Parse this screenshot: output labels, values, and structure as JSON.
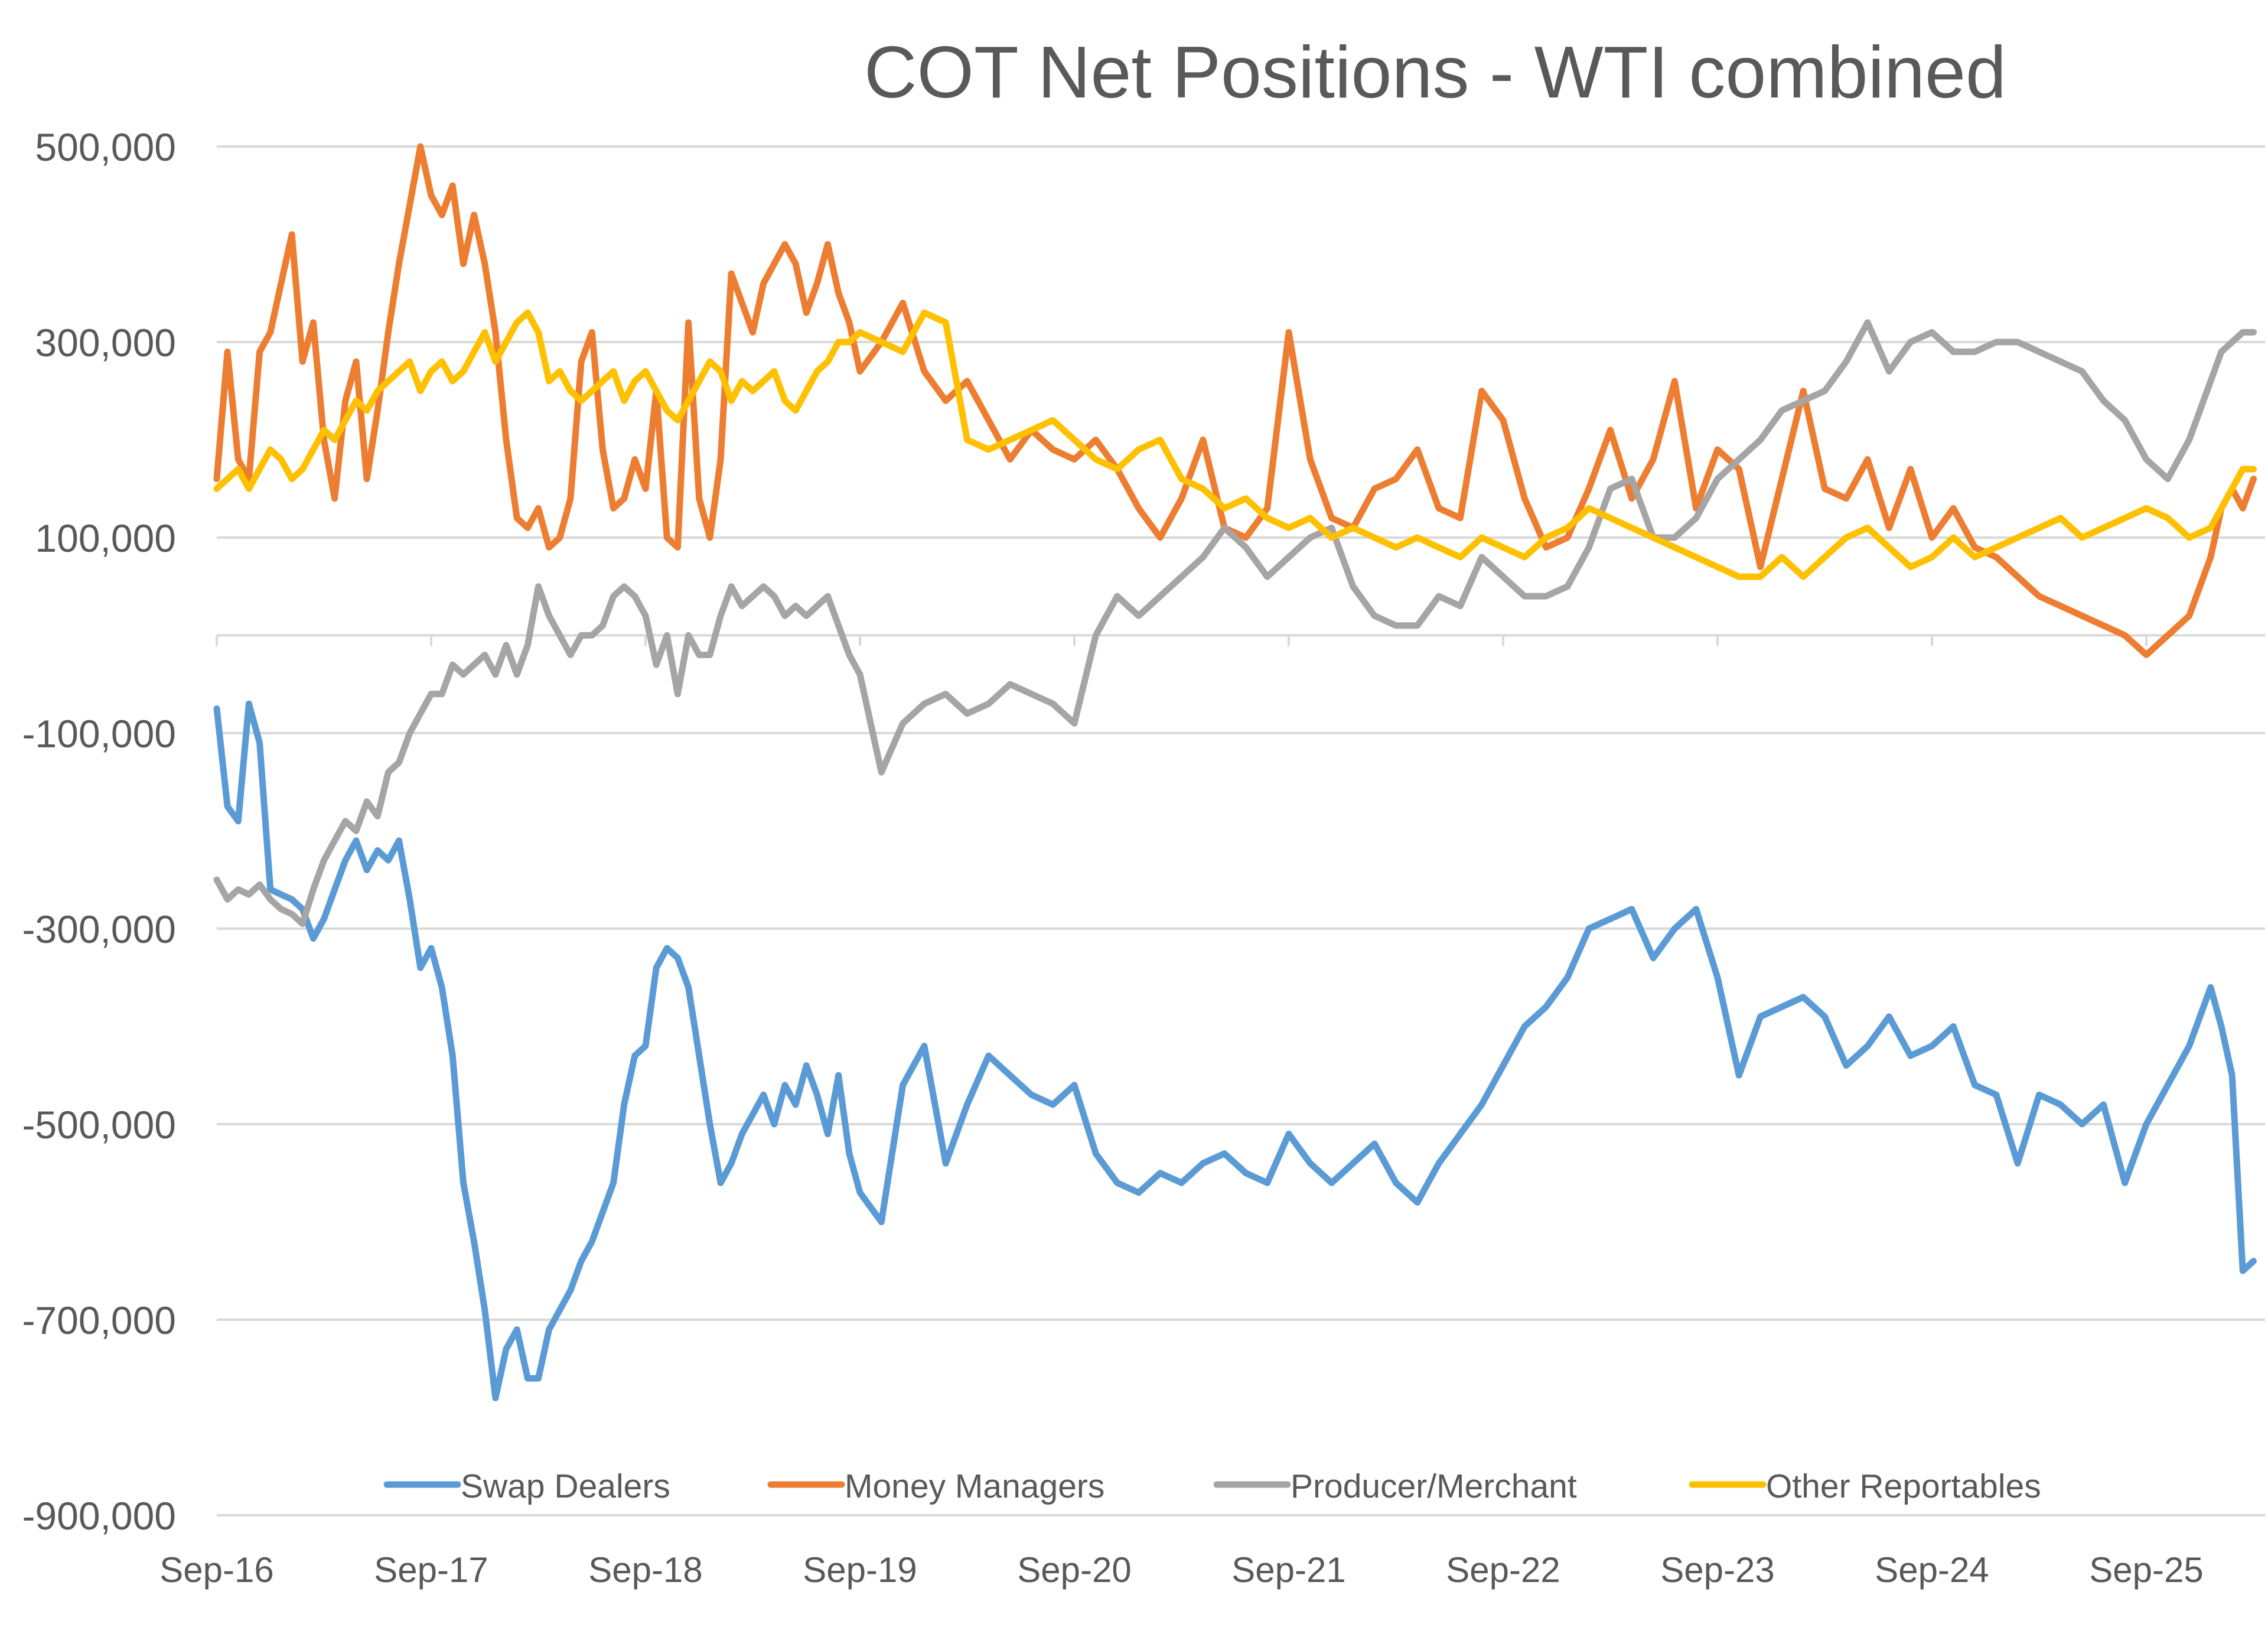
{
  "chart_data": {
    "type": "line",
    "title": "COT Net Positions - WTI combined",
    "xlabel": "",
    "ylabel": "",
    "ylim": [
      -900000,
      500000
    ],
    "yticks": [
      500000,
      300000,
      100000,
      -100000,
      -300000,
      -500000,
      -700000,
      -900000
    ],
    "ytick_labels": [
      "500,000",
      "300,000",
      "100,000",
      "-100,000",
      "-300,000",
      "-500,000",
      "-700,000",
      "-900,000"
    ],
    "xlim": [
      0,
      9.5
    ],
    "xticks": [
      0,
      1,
      2,
      3,
      4,
      5,
      6,
      7,
      8,
      9
    ],
    "xtick_labels": [
      "Sep-16",
      "Sep-17",
      "Sep-18",
      "Sep-19",
      "Sep-20",
      "Sep-21",
      "Sep-22",
      "Sep-23",
      "Sep-24",
      "Sep-25"
    ],
    "x_units": "years since Sep-16",
    "grid": true,
    "legend_position": "bottom",
    "series": [
      {
        "name": "Swap Dealers",
        "color": "#5B9BD5",
        "x": [
          0,
          0.05,
          0.1,
          0.15,
          0.2,
          0.25,
          0.3,
          0.35,
          0.4,
          0.45,
          0.5,
          0.55,
          0.6,
          0.65,
          0.7,
          0.75,
          0.8,
          0.85,
          0.9,
          0.95,
          1.0,
          1.05,
          1.1,
          1.15,
          1.2,
          1.25,
          1.3,
          1.35,
          1.4,
          1.45,
          1.5,
          1.55,
          1.6,
          1.65,
          1.7,
          1.75,
          1.8,
          1.85,
          1.9,
          1.95,
          2.0,
          2.05,
          2.1,
          2.15,
          2.2,
          2.25,
          2.3,
          2.35,
          2.4,
          2.45,
          2.5,
          2.55,
          2.6,
          2.65,
          2.7,
          2.75,
          2.8,
          2.85,
          2.9,
          2.95,
          3.0,
          3.1,
          3.2,
          3.3,
          3.4,
          3.5,
          3.6,
          3.7,
          3.8,
          3.9,
          4.0,
          4.1,
          4.2,
          4.3,
          4.4,
          4.5,
          4.6,
          4.7,
          4.8,
          4.9,
          5.0,
          5.1,
          5.2,
          5.3,
          5.4,
          5.5,
          5.6,
          5.7,
          5.8,
          5.9,
          6.0,
          6.1,
          6.2,
          6.3,
          6.4,
          6.5,
          6.6,
          6.7,
          6.8,
          6.9,
          7.0,
          7.1,
          7.2,
          7.3,
          7.4,
          7.5,
          7.6,
          7.7,
          7.8,
          7.9,
          8.0,
          8.1,
          8.2,
          8.3,
          8.4,
          8.5,
          8.6,
          8.7,
          8.8,
          8.9,
          9.0,
          9.1,
          9.2,
          9.3,
          9.35,
          9.4,
          9.45,
          9.5
        ],
        "values": [
          -75000,
          -175000,
          -190000,
          -70000,
          -110000,
          -260000,
          -265000,
          -270000,
          -280000,
          -310000,
          -290000,
          -260000,
          -230000,
          -210000,
          -240000,
          -220000,
          -230000,
          -210000,
          -270000,
          -340000,
          -320000,
          -360000,
          -430000,
          -560000,
          -620000,
          -690000,
          -780000,
          -730000,
          -710000,
          -760000,
          -760000,
          -710000,
          -690000,
          -670000,
          -640000,
          -620000,
          -590000,
          -560000,
          -480000,
          -430000,
          -420000,
          -340000,
          -320000,
          -330000,
          -360000,
          -430000,
          -500000,
          -560000,
          -540000,
          -510000,
          -490000,
          -470000,
          -500000,
          -460000,
          -480000,
          -440000,
          -470000,
          -510000,
          -450000,
          -530000,
          -570000,
          -600000,
          -460000,
          -420000,
          -540000,
          -480000,
          -430000,
          -450000,
          -470000,
          -480000,
          -460000,
          -530000,
          -560000,
          -570000,
          -550000,
          -560000,
          -540000,
          -530000,
          -550000,
          -560000,
          -510000,
          -540000,
          -560000,
          -540000,
          -520000,
          -560000,
          -580000,
          -540000,
          -510000,
          -480000,
          -440000,
          -400000,
          -380000,
          -350000,
          -300000,
          -290000,
          -280000,
          -330000,
          -300000,
          -280000,
          -350000,
          -450000,
          -390000,
          -380000,
          -370000,
          -390000,
          -440000,
          -420000,
          -390000,
          -430000,
          -420000,
          -400000,
          -460000,
          -470000,
          -540000,
          -470000,
          -480000,
          -500000,
          -480000,
          -560000,
          -500000,
          -460000,
          -420000,
          -360000,
          -400000,
          -450000,
          -650000,
          -640000
        ]
      },
      {
        "name": "Money Managers",
        "color": "#ED7D31",
        "x": [
          0,
          0.05,
          0.1,
          0.15,
          0.2,
          0.25,
          0.3,
          0.35,
          0.4,
          0.45,
          0.5,
          0.55,
          0.6,
          0.65,
          0.7,
          0.75,
          0.8,
          0.85,
          0.9,
          0.95,
          1.0,
          1.05,
          1.1,
          1.15,
          1.2,
          1.25,
          1.3,
          1.35,
          1.4,
          1.45,
          1.5,
          1.55,
          1.6,
          1.65,
          1.7,
          1.75,
          1.8,
          1.85,
          1.9,
          1.95,
          2.0,
          2.05,
          2.1,
          2.15,
          2.2,
          2.25,
          2.3,
          2.35,
          2.4,
          2.45,
          2.5,
          2.55,
          2.6,
          2.65,
          2.7,
          2.75,
          2.8,
          2.85,
          2.9,
          2.95,
          3.0,
          3.1,
          3.2,
          3.3,
          3.4,
          3.5,
          3.6,
          3.7,
          3.8,
          3.9,
          4.0,
          4.1,
          4.2,
          4.3,
          4.4,
          4.5,
          4.6,
          4.7,
          4.8,
          4.9,
          5.0,
          5.1,
          5.2,
          5.3,
          5.4,
          5.5,
          5.6,
          5.7,
          5.8,
          5.9,
          6.0,
          6.1,
          6.2,
          6.3,
          6.4,
          6.5,
          6.6,
          6.7,
          6.8,
          6.9,
          7.0,
          7.1,
          7.2,
          7.3,
          7.4,
          7.5,
          7.6,
          7.7,
          7.8,
          7.9,
          8.0,
          8.1,
          8.2,
          8.3,
          8.4,
          8.5,
          8.6,
          8.7,
          8.8,
          8.9,
          9.0,
          9.1,
          9.2,
          9.3,
          9.35,
          9.4,
          9.45,
          9.5
        ],
        "values": [
          160000,
          290000,
          180000,
          160000,
          290000,
          310000,
          360000,
          410000,
          280000,
          320000,
          200000,
          140000,
          240000,
          280000,
          160000,
          230000,
          310000,
          380000,
          440000,
          500000,
          450000,
          430000,
          460000,
          380000,
          430000,
          380000,
          310000,
          200000,
          120000,
          110000,
          130000,
          90000,
          100000,
          140000,
          280000,
          310000,
          190000,
          130000,
          140000,
          180000,
          150000,
          250000,
          100000,
          90000,
          320000,
          140000,
          100000,
          180000,
          370000,
          340000,
          310000,
          360000,
          380000,
          400000,
          380000,
          330000,
          360000,
          400000,
          350000,
          320000,
          270000,
          300000,
          340000,
          270000,
          240000,
          260000,
          220000,
          180000,
          210000,
          190000,
          180000,
          200000,
          170000,
          130000,
          100000,
          140000,
          200000,
          110000,
          100000,
          130000,
          310000,
          180000,
          120000,
          110000,
          150000,
          160000,
          190000,
          130000,
          120000,
          250000,
          220000,
          140000,
          90000,
          100000,
          150000,
          210000,
          140000,
          180000,
          260000,
          130000,
          190000,
          170000,
          70000,
          160000,
          250000,
          150000,
          140000,
          180000,
          110000,
          170000,
          100000,
          130000,
          90000,
          80000,
          60000,
          40000,
          30000,
          20000,
          10000,
          0,
          -20000,
          0,
          20000,
          80000,
          130000,
          150000,
          130000,
          160000
        ]
      },
      {
        "name": "Producer/Merchant",
        "color": "#A5A5A5",
        "x": [
          0,
          0.05,
          0.1,
          0.15,
          0.2,
          0.25,
          0.3,
          0.35,
          0.4,
          0.45,
          0.5,
          0.55,
          0.6,
          0.65,
          0.7,
          0.75,
          0.8,
          0.85,
          0.9,
          0.95,
          1.0,
          1.05,
          1.1,
          1.15,
          1.2,
          1.25,
          1.3,
          1.35,
          1.4,
          1.45,
          1.5,
          1.55,
          1.6,
          1.65,
          1.7,
          1.75,
          1.8,
          1.85,
          1.9,
          1.95,
          2.0,
          2.05,
          2.1,
          2.15,
          2.2,
          2.25,
          2.3,
          2.35,
          2.4,
          2.45,
          2.5,
          2.55,
          2.6,
          2.65,
          2.7,
          2.75,
          2.8,
          2.85,
          2.9,
          2.95,
          3.0,
          3.1,
          3.2,
          3.3,
          3.4,
          3.5,
          3.6,
          3.7,
          3.8,
          3.9,
          4.0,
          4.1,
          4.2,
          4.3,
          4.4,
          4.5,
          4.6,
          4.7,
          4.8,
          4.9,
          5.0,
          5.1,
          5.2,
          5.3,
          5.4,
          5.5,
          5.6,
          5.7,
          5.8,
          5.9,
          6.0,
          6.1,
          6.2,
          6.3,
          6.4,
          6.5,
          6.6,
          6.7,
          6.8,
          6.9,
          7.0,
          7.1,
          7.2,
          7.3,
          7.4,
          7.5,
          7.6,
          7.7,
          7.8,
          7.9,
          8.0,
          8.1,
          8.2,
          8.3,
          8.4,
          8.5,
          8.6,
          8.7,
          8.8,
          8.9,
          9.0,
          9.1,
          9.2,
          9.3,
          9.35,
          9.4,
          9.45,
          9.5
        ],
        "values": [
          -250000,
          -270000,
          -260000,
          -265000,
          -255000,
          -270000,
          -280000,
          -285000,
          -295000,
          -260000,
          -230000,
          -210000,
          -190000,
          -200000,
          -170000,
          -185000,
          -140000,
          -130000,
          -100000,
          -80000,
          -60000,
          -60000,
          -30000,
          -40000,
          -30000,
          -20000,
          -40000,
          -10000,
          -40000,
          -10000,
          50000,
          20000,
          0,
          -20000,
          0,
          0,
          10000,
          40000,
          50000,
          40000,
          20000,
          -30000,
          0,
          -60000,
          0,
          -20000,
          -20000,
          20000,
          50000,
          30000,
          40000,
          50000,
          40000,
          20000,
          30000,
          20000,
          30000,
          40000,
          10000,
          -20000,
          -40000,
          -140000,
          -90000,
          -70000,
          -60000,
          -80000,
          -70000,
          -50000,
          -60000,
          -70000,
          -90000,
          0,
          40000,
          20000,
          40000,
          60000,
          80000,
          110000,
          90000,
          60000,
          80000,
          100000,
          110000,
          50000,
          20000,
          10000,
          10000,
          40000,
          30000,
          80000,
          60000,
          40000,
          40000,
          50000,
          90000,
          150000,
          160000,
          100000,
          100000,
          120000,
          160000,
          180000,
          200000,
          230000,
          240000,
          250000,
          280000,
          320000,
          270000,
          300000,
          310000,
          290000,
          290000,
          300000,
          300000,
          290000,
          280000,
          270000,
          240000,
          220000,
          180000,
          160000,
          200000,
          260000,
          290000,
          300000,
          310000,
          310000
        ]
      },
      {
        "name": "Other Reportables",
        "color": "#FFC000",
        "x": [
          0,
          0.05,
          0.1,
          0.15,
          0.2,
          0.25,
          0.3,
          0.35,
          0.4,
          0.45,
          0.5,
          0.55,
          0.6,
          0.65,
          0.7,
          0.75,
          0.8,
          0.85,
          0.9,
          0.95,
          1.0,
          1.05,
          1.1,
          1.15,
          1.2,
          1.25,
          1.3,
          1.35,
          1.4,
          1.45,
          1.5,
          1.55,
          1.6,
          1.65,
          1.7,
          1.75,
          1.8,
          1.85,
          1.9,
          1.95,
          2.0,
          2.05,
          2.1,
          2.15,
          2.2,
          2.25,
          2.3,
          2.35,
          2.4,
          2.45,
          2.5,
          2.55,
          2.6,
          2.65,
          2.7,
          2.75,
          2.8,
          2.85,
          2.9,
          2.95,
          3.0,
          3.1,
          3.2,
          3.3,
          3.4,
          3.5,
          3.6,
          3.7,
          3.8,
          3.9,
          4.0,
          4.1,
          4.2,
          4.3,
          4.4,
          4.5,
          4.6,
          4.7,
          4.8,
          4.9,
          5.0,
          5.1,
          5.2,
          5.3,
          5.4,
          5.5,
          5.6,
          5.7,
          5.8,
          5.9,
          6.0,
          6.1,
          6.2,
          6.3,
          6.4,
          6.5,
          6.6,
          6.7,
          6.8,
          6.9,
          7.0,
          7.1,
          7.2,
          7.3,
          7.4,
          7.5,
          7.6,
          7.7,
          7.8,
          7.9,
          8.0,
          8.1,
          8.2,
          8.3,
          8.4,
          8.5,
          8.6,
          8.7,
          8.8,
          8.9,
          9.0,
          9.1,
          9.2,
          9.3,
          9.35,
          9.4,
          9.45,
          9.5
        ],
        "values": [
          150000,
          160000,
          170000,
          150000,
          170000,
          190000,
          180000,
          160000,
          170000,
          190000,
          210000,
          200000,
          220000,
          240000,
          230000,
          250000,
          260000,
          270000,
          280000,
          250000,
          270000,
          280000,
          260000,
          270000,
          290000,
          310000,
          280000,
          300000,
          320000,
          330000,
          310000,
          260000,
          270000,
          250000,
          240000,
          250000,
          260000,
          270000,
          240000,
          260000,
          270000,
          250000,
          230000,
          220000,
          240000,
          260000,
          280000,
          270000,
          240000,
          260000,
          250000,
          260000,
          270000,
          240000,
          230000,
          250000,
          270000,
          280000,
          300000,
          300000,
          310000,
          300000,
          290000,
          330000,
          320000,
          200000,
          190000,
          200000,
          210000,
          220000,
          200000,
          180000,
          170000,
          190000,
          200000,
          160000,
          150000,
          130000,
          140000,
          120000,
          110000,
          120000,
          100000,
          110000,
          100000,
          90000,
          100000,
          90000,
          80000,
          100000,
          90000,
          80000,
          100000,
          110000,
          130000,
          120000,
          110000,
          100000,
          90000,
          80000,
          70000,
          60000,
          60000,
          80000,
          60000,
          80000,
          100000,
          110000,
          90000,
          70000,
          80000,
          100000,
          80000,
          90000,
          100000,
          110000,
          120000,
          100000,
          110000,
          120000,
          130000,
          120000,
          100000,
          110000,
          130000,
          150000,
          170000,
          170000
        ]
      }
    ]
  }
}
